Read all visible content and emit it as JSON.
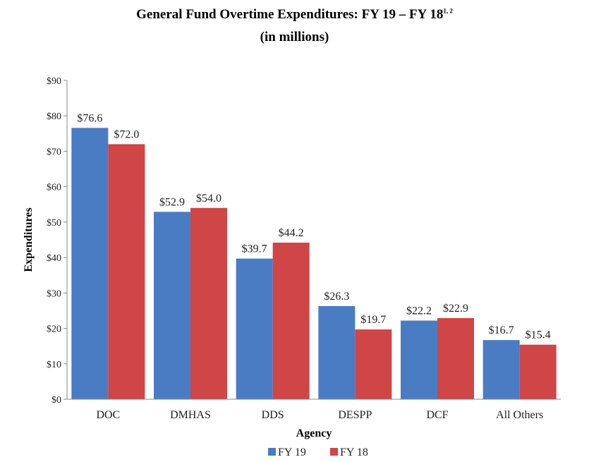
{
  "chart_data": {
    "type": "bar",
    "title": "General Fund Overtime Expenditures: FY 19 – FY 18",
    "title_superscript": "1, 2",
    "subtitle": "(in millions)",
    "xlabel": "Agency",
    "ylabel": "Expenditures",
    "categories": [
      "DOC",
      "DMHAS",
      "DDS",
      "DESPP",
      "DCF",
      "All Others"
    ],
    "series": [
      {
        "name": "FY 19",
        "color": "#4a7cc4",
        "values": [
          76.6,
          52.9,
          39.7,
          26.3,
          22.2,
          16.7
        ],
        "labels": [
          "$76.6",
          "$52.9",
          "$39.7",
          "$26.3",
          "$22.2",
          "$16.7"
        ]
      },
      {
        "name": "FY 18",
        "color": "#d04545",
        "values": [
          72.0,
          54.0,
          44.2,
          19.7,
          22.9,
          15.4
        ],
        "labels": [
          "$72.0",
          "$54.0",
          "$44.2",
          "$19.7",
          "$22.9",
          "$15.4"
        ]
      }
    ],
    "ylim": [
      0,
      90
    ],
    "yticks": [
      0,
      10,
      20,
      30,
      40,
      50,
      60,
      70,
      80,
      90
    ],
    "ytick_labels": [
      "$0",
      "$10",
      "$20",
      "$30",
      "$40",
      "$50",
      "$60",
      "$70",
      "$80",
      "$90"
    ],
    "grid": false,
    "legend_position": "bottom"
  }
}
